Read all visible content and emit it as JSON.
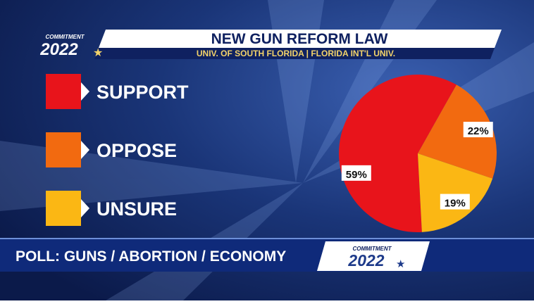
{
  "chart_data": {
    "type": "pie",
    "title": "NEW GUN REFORM LAW",
    "subtitle": "UNIV. OF SOUTH FLORIDA | FLORIDA INT'L UNIV.",
    "categories": [
      "SUPPORT",
      "OPPOSE",
      "UNSURE"
    ],
    "values": [
      59,
      22,
      19
    ],
    "value_labels": [
      "59%",
      "22%",
      "19%"
    ],
    "colors": [
      "#e8141b",
      "#f26a10",
      "#fbb714"
    ]
  },
  "branding": {
    "word": "COMMITMENT",
    "year": "2022"
  },
  "ticker": "POLL: GUNS / ABORTION / ECONOMY"
}
